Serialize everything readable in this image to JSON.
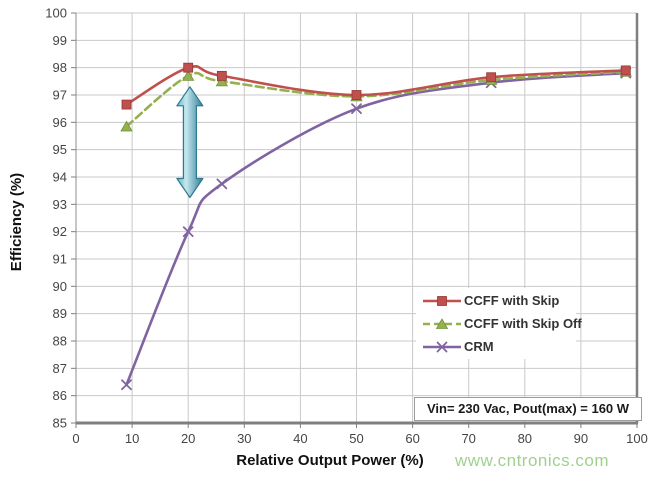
{
  "watermark": "www.cntronics.com",
  "chart_data": {
    "type": "line",
    "title": "",
    "xlabel": "Relative Output Power (%)",
    "ylabel": "Efficiency (%)",
    "xlim": [
      0,
      100
    ],
    "ylim": [
      85,
      100
    ],
    "x_ticks": [
      0,
      10,
      20,
      30,
      40,
      50,
      60,
      70,
      80,
      90,
      100
    ],
    "y_ticks": [
      85,
      86,
      87,
      88,
      89,
      90,
      91,
      92,
      93,
      94,
      95,
      96,
      97,
      98,
      99,
      100
    ],
    "grid": true,
    "legend_position": "inside-right",
    "x": [
      9,
      20,
      26,
      50,
      74,
      98
    ],
    "series": [
      {
        "name": "CCFF with Skip",
        "color": "#c0504d",
        "marker": "square",
        "line_style": "solid",
        "values": [
          96.65,
          98.0,
          97.7,
          97.0,
          97.65,
          97.9
        ]
      },
      {
        "name": "CCFF with Skip Off",
        "color": "#94b04f",
        "marker": "triangle",
        "line_style": "dashed",
        "values": [
          95.85,
          97.7,
          97.5,
          96.95,
          97.55,
          97.85
        ]
      },
      {
        "name": "CRM",
        "color": "#8064a2",
        "marker": "x",
        "line_style": "solid",
        "values": [
          86.4,
          92.0,
          93.75,
          96.5,
          97.45,
          97.8
        ]
      }
    ],
    "annotations": {
      "note": "Vin= 230 Vac, Pout(max) = 160 W",
      "gap_arrow": {
        "x": 20.3,
        "y_from": 93.25,
        "y_to": 97.3,
        "color": "#4bacc6",
        "edge_color": "#2d7a8f"
      }
    }
  }
}
